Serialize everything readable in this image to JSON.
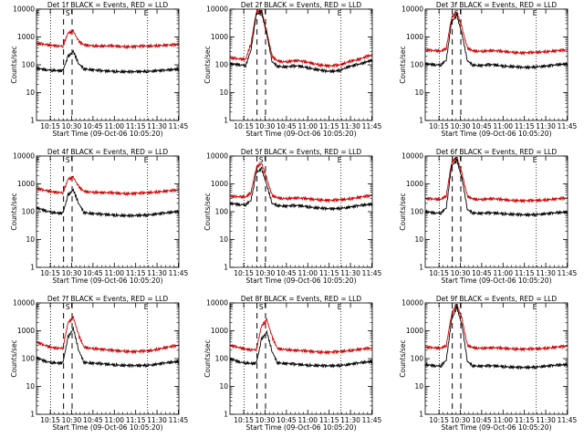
{
  "chart_data": [
    {
      "type": "line",
      "title": "Det 1f BLACK = Events, RED = LLD",
      "xlabel": "Start Time (09-Oct-06 10:05:20)",
      "ylabel": "Counts/sec",
      "y_scale": "log",
      "ylim": [
        1,
        10000
      ],
      "x_tick_labels": [
        "10:15",
        "10:30",
        "10:45",
        "11:00",
        "11:15",
        "11:30",
        "11:45"
      ],
      "y_tick_labels": [
        "1",
        "10",
        "100",
        "1000",
        "10000"
      ],
      "x_range_minutes": [
        0,
        100
      ],
      "vmarks": {
        "dotted": [
          10,
          78
        ],
        "dashed": [
          19,
          25
        ]
      },
      "markers": [
        {
          "label": "E",
          "t": 1
        },
        {
          "label": "S",
          "t": 22
        },
        {
          "label": "E",
          "t": 77
        }
      ],
      "series": [
        {
          "color": "#cc0000",
          "values": [
            600,
            560,
            520,
            500,
            480,
            470,
            1400,
            1600,
            700,
            520,
            500,
            480,
            470,
            470,
            480,
            470,
            460,
            450,
            450,
            460,
            470,
            470,
            480,
            490,
            500,
            510,
            520,
            540
          ]
        },
        {
          "color": "#000000",
          "values": [
            75,
            70,
            66,
            64,
            62,
            62,
            200,
            300,
            110,
            72,
            68,
            65,
            62,
            60,
            60,
            58,
            57,
            56,
            56,
            57,
            58,
            58,
            60,
            62,
            63,
            65,
            68,
            72
          ]
        }
      ]
    },
    {
      "type": "line",
      "title": "Det 2f BLACK = Events, RED = LLD",
      "xlabel": "Start Time (09-Oct-06 10:05:20)",
      "ylabel": "Counts/sec",
      "y_scale": "log",
      "ylim": [
        1,
        10000
      ],
      "x_tick_labels": [
        "10:15",
        "10:30",
        "10:45",
        "11:00",
        "11:15",
        "11:30",
        "11:45"
      ],
      "y_tick_labels": [
        "1",
        "10",
        "100",
        "1000",
        "10000"
      ],
      "x_range_minutes": [
        0,
        100
      ],
      "vmarks": {
        "dotted": [
          10,
          78
        ],
        "dashed": [
          19,
          25
        ]
      },
      "markers": [
        {
          "label": "S",
          "t": 22
        },
        {
          "label": "E",
          "t": 77
        }
      ],
      "series": [
        {
          "color": "#cc0000",
          "values": [
            180,
            170,
            160,
            160,
            600,
            8000,
            9000,
            1500,
            200,
            140,
            130,
            130,
            140,
            140,
            130,
            120,
            110,
            100,
            95,
            90,
            95,
            100,
            120,
            140,
            150,
            170,
            200,
            230
          ]
        },
        {
          "color": "#000000",
          "values": [
            110,
            105,
            100,
            95,
            350,
            6500,
            7500,
            1200,
            130,
            90,
            85,
            85,
            90,
            90,
            85,
            78,
            70,
            65,
            60,
            58,
            60,
            65,
            80,
            90,
            100,
            110,
            130,
            150
          ]
        }
      ]
    },
    {
      "type": "line",
      "title": "Det 3f BLACK = Events, RED = LLD",
      "xlabel": "Start Time (09-Oct-06 10:05:20)",
      "ylabel": "Counts/sec",
      "y_scale": "log",
      "ylim": [
        1,
        10000
      ],
      "x_tick_labels": [
        "10:15",
        "10:30",
        "10:45",
        "11:00",
        "11:15",
        "11:30",
        "11:45"
      ],
      "y_tick_labels": [
        "1",
        "10",
        "100",
        "1000",
        "10000"
      ],
      "x_range_minutes": [
        0,
        100
      ],
      "vmarks": {
        "dotted": [
          10,
          78
        ],
        "dashed": [
          19,
          25
        ]
      },
      "markers": [
        {
          "label": "S",
          "t": 22
        },
        {
          "label": "E",
          "t": 77
        }
      ],
      "series": [
        {
          "color": "#cc0000",
          "values": [
            350,
            330,
            320,
            310,
            400,
            5000,
            8000,
            2000,
            400,
            320,
            310,
            310,
            320,
            320,
            310,
            300,
            290,
            280,
            270,
            270,
            275,
            280,
            290,
            300,
            310,
            320,
            330,
            340
          ]
        },
        {
          "color": "#000000",
          "values": [
            110,
            105,
            100,
            100,
            150,
            3500,
            6000,
            1200,
            140,
            100,
            95,
            95,
            100,
            100,
            95,
            90,
            88,
            85,
            82,
            80,
            82,
            85,
            88,
            90,
            95,
            100,
            105,
            110
          ]
        }
      ]
    },
    {
      "type": "line",
      "title": "Det 4f BLACK = Events, RED = LLD",
      "xlabel": "Start Time (09-Oct-06 10:05:20)",
      "ylabel": "Counts/sec",
      "y_scale": "log",
      "ylim": [
        1,
        10000
      ],
      "x_tick_labels": [
        "10:15",
        "10:30",
        "10:45",
        "11:00",
        "11:15",
        "11:30",
        "11:45"
      ],
      "y_tick_labels": [
        "1",
        "10",
        "100",
        "1000",
        "10000"
      ],
      "x_range_minutes": [
        0,
        100
      ],
      "vmarks": {
        "dotted": [
          10,
          78
        ],
        "dashed": [
          19,
          25
        ]
      },
      "markers": [
        {
          "label": "E",
          "t": 1
        },
        {
          "label": "S",
          "t": 22
        },
        {
          "label": "E",
          "t": 77
        }
      ],
      "series": [
        {
          "color": "#cc0000",
          "values": [
            700,
            620,
            560,
            520,
            500,
            480,
            1500,
            1700,
            800,
            540,
            520,
            500,
            490,
            480,
            480,
            470,
            460,
            450,
            450,
            460,
            470,
            480,
            500,
            520,
            540,
            560,
            580,
            600
          ]
        },
        {
          "color": "#000000",
          "values": [
            140,
            120,
            105,
            95,
            90,
            88,
            400,
            600,
            200,
            95,
            88,
            85,
            82,
            80,
            78,
            76,
            74,
            72,
            72,
            73,
            75,
            77,
            80,
            84,
            88,
            92,
            98,
            105
          ]
        }
      ]
    },
    {
      "type": "line",
      "title": "Det 5f BLACK = Events, RED = LLD",
      "xlabel": "Start Time (09-Oct-06 10:05:20)",
      "ylabel": "Counts/sec",
      "y_scale": "log",
      "ylim": [
        1,
        10000
      ],
      "x_tick_labels": [
        "10:15",
        "10:30",
        "10:45",
        "11:00",
        "11:15",
        "11:30",
        "11:45"
      ],
      "y_tick_labels": [
        "1",
        "10",
        "100",
        "1000",
        "10000"
      ],
      "x_range_minutes": [
        0,
        100
      ],
      "vmarks": {
        "dotted": [
          10,
          78
        ],
        "dashed": [
          19,
          25
        ]
      },
      "markers": [
        {
          "label": "S",
          "t": 22
        },
        {
          "label": "E",
          "t": 77
        }
      ],
      "series": [
        {
          "color": "#cc0000",
          "values": [
            360,
            350,
            340,
            340,
            500,
            4000,
            5500,
            1500,
            380,
            320,
            300,
            300,
            310,
            310,
            300,
            290,
            280,
            270,
            260,
            255,
            260,
            270,
            280,
            300,
            320,
            340,
            360,
            380
          ]
        },
        {
          "color": "#000000",
          "values": [
            200,
            190,
            180,
            180,
            260,
            2500,
            3500,
            900,
            200,
            170,
            160,
            160,
            165,
            165,
            160,
            150,
            140,
            135,
            130,
            128,
            130,
            135,
            140,
            150,
            160,
            170,
            180,
            190
          ]
        }
      ]
    },
    {
      "type": "line",
      "title": "Det 6f BLACK = Events, RED = LLD",
      "xlabel": "Start Time (09-Oct-06 10:05:20)",
      "ylabel": "Counts/sec",
      "y_scale": "log",
      "ylim": [
        1,
        10000
      ],
      "x_tick_labels": [
        "10:15",
        "10:30",
        "10:45",
        "11:00",
        "11:15",
        "11:30",
        "11:45"
      ],
      "y_tick_labels": [
        "1",
        "10",
        "100",
        "1000",
        "10000"
      ],
      "x_range_minutes": [
        0,
        100
      ],
      "vmarks": {
        "dotted": [
          10,
          78
        ],
        "dashed": [
          19,
          25
        ]
      },
      "markers": [
        {
          "label": "S",
          "t": 22
        },
        {
          "label": "E",
          "t": 77
        }
      ],
      "series": [
        {
          "color": "#cc0000",
          "values": [
            300,
            290,
            280,
            280,
            380,
            6000,
            9000,
            2200,
            360,
            290,
            280,
            280,
            290,
            290,
            280,
            270,
            260,
            255,
            250,
            248,
            250,
            255,
            260,
            270,
            280,
            290,
            300,
            310
          ]
        },
        {
          "color": "#000000",
          "values": [
            100,
            95,
            90,
            90,
            140,
            4500,
            7000,
            1500,
            120,
            92,
            88,
            88,
            90,
            90,
            88,
            85,
            82,
            80,
            78,
            77,
            78,
            80,
            82,
            85,
            88,
            92,
            95,
            100
          ]
        }
      ]
    },
    {
      "type": "line",
      "title": "Det 7f BLACK = Events, RED = LLD",
      "xlabel": "Start Time (09-Oct-06 10:05:20)",
      "ylabel": "Counts/sec",
      "y_scale": "log",
      "ylim": [
        1,
        10000
      ],
      "x_tick_labels": [
        "10:15",
        "10:30",
        "10:45",
        "11:00",
        "11:15",
        "11:30",
        "11:45"
      ],
      "y_tick_labels": [
        "1",
        "10",
        "100",
        "1000",
        "10000"
      ],
      "x_range_minutes": [
        0,
        100
      ],
      "vmarks": {
        "dotted": [
          10,
          78
        ],
        "dashed": [
          19,
          25
        ]
      },
      "markers": [
        {
          "label": "E",
          "t": 1
        },
        {
          "label": "S",
          "t": 22
        },
        {
          "label": "E",
          "t": 77
        }
      ],
      "series": [
        {
          "color": "#cc0000",
          "values": [
            400,
            330,
            280,
            250,
            240,
            240,
            2000,
            3000,
            700,
            260,
            240,
            230,
            220,
            210,
            200,
            195,
            190,
            185,
            180,
            180,
            185,
            190,
            200,
            220,
            240,
            260,
            280,
            300
          ]
        },
        {
          "color": "#000000",
          "values": [
            110,
            90,
            78,
            72,
            70,
            70,
            600,
            1200,
            200,
            75,
            70,
            68,
            66,
            64,
            62,
            60,
            58,
            57,
            56,
            56,
            57,
            58,
            60,
            64,
            68,
            72,
            76,
            80
          ]
        }
      ]
    },
    {
      "type": "line",
      "title": "Det 8f BLACK = Events, RED = LLD",
      "xlabel": "Start Time (09-Oct-06 10:05:20)",
      "ylabel": "Counts/sec",
      "y_scale": "log",
      "ylim": [
        1,
        10000
      ],
      "x_tick_labels": [
        "10:15",
        "10:30",
        "10:45",
        "11:00",
        "11:15",
        "11:30",
        "11:45"
      ],
      "y_tick_labels": [
        "1",
        "10",
        "100",
        "1000",
        "10000"
      ],
      "x_range_minutes": [
        0,
        100
      ],
      "vmarks": {
        "dotted": [
          10,
          78
        ],
        "dashed": [
          19,
          25
        ]
      },
      "markers": [
        {
          "label": "E",
          "t": 1
        },
        {
          "label": "S",
          "t": 22
        },
        {
          "label": "E",
          "t": 77
        }
      ],
      "series": [
        {
          "color": "#cc0000",
          "values": [
            300,
            270,
            240,
            220,
            210,
            210,
            1500,
            2500,
            600,
            230,
            220,
            210,
            200,
            195,
            190,
            185,
            180,
            175,
            170,
            170,
            175,
            180,
            190,
            200,
            210,
            220,
            230,
            240
          ]
        },
        {
          "color": "#000000",
          "values": [
            100,
            85,
            75,
            70,
            68,
            68,
            500,
            900,
            180,
            72,
            68,
            66,
            64,
            62,
            60,
            58,
            57,
            56,
            55,
            55,
            56,
            58,
            60,
            64,
            68,
            72,
            76,
            80
          ]
        }
      ]
    },
    {
      "type": "line",
      "title": "Det 9f BLACK = Events, RED = LLD",
      "xlabel": "Start Time (09-Oct-06 10:05:20)",
      "ylabel": "Counts/sec",
      "y_scale": "log",
      "ylim": [
        1,
        10000
      ],
      "x_tick_labels": [
        "10:15",
        "10:30",
        "10:45",
        "11:00",
        "11:15",
        "11:30",
        "11:45"
      ],
      "y_tick_labels": [
        "1",
        "10",
        "100",
        "1000",
        "10000"
      ],
      "x_range_minutes": [
        0,
        100
      ],
      "vmarks": {
        "dotted": [
          10,
          78
        ],
        "dashed": [
          19,
          25
        ]
      },
      "markers": [
        {
          "label": "S",
          "t": 22
        },
        {
          "label": "E",
          "t": 77
        }
      ],
      "series": [
        {
          "color": "#cc0000",
          "values": [
            260,
            250,
            240,
            240,
            300,
            4000,
            9000,
            2500,
            300,
            250,
            240,
            240,
            245,
            245,
            240,
            235,
            230,
            225,
            220,
            220,
            222,
            225,
            230,
            240,
            250,
            260,
            270,
            280
          ]
        },
        {
          "color": "#000000",
          "values": [
            60,
            58,
            55,
            55,
            90,
            2500,
            7000,
            1500,
            80,
            56,
            54,
            54,
            55,
            55,
            54,
            52,
            50,
            49,
            48,
            48,
            49,
            50,
            52,
            54,
            56,
            58,
            60,
            62
          ]
        }
      ]
    }
  ]
}
